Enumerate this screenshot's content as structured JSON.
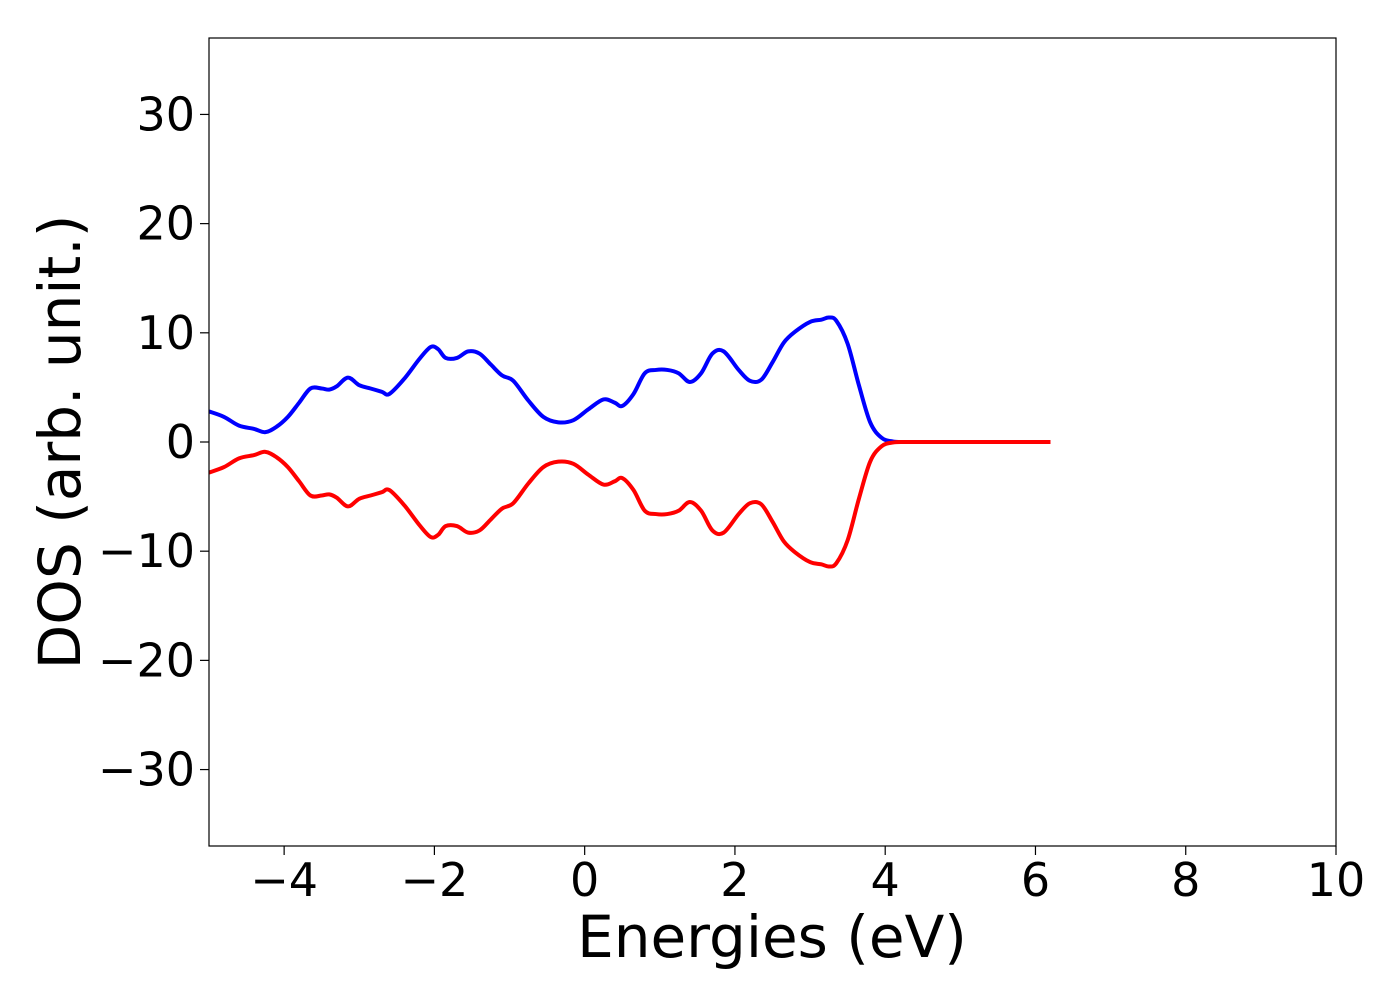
{
  "chart_data": {
    "type": "line",
    "title": "",
    "xlabel": "Energies (eV)",
    "ylabel": "DOS (arb. unit.)",
    "xlim": [
      -5,
      10
    ],
    "ylim": [
      -37,
      37
    ],
    "grid": false,
    "legend": "none",
    "xticks": [
      -4,
      -2,
      0,
      2,
      4,
      6,
      8,
      10
    ],
    "xtick_labels": [
      "−4",
      "−2",
      "0",
      "2",
      "4",
      "6",
      "8",
      "10"
    ],
    "yticks": [
      -30,
      -20,
      -10,
      0,
      10,
      20,
      30
    ],
    "ytick_labels": [
      "−30",
      "−20",
      "−10",
      "0",
      "10",
      "20",
      "30"
    ],
    "series": [
      {
        "color": "#0000ff",
        "x": [
          -5.0,
          -4.8,
          -4.6,
          -4.4,
          -4.25,
          -4.1,
          -3.95,
          -3.8,
          -3.65,
          -3.5,
          -3.4,
          -3.3,
          -3.15,
          -3.0,
          -2.85,
          -2.7,
          -2.6,
          -2.4,
          -2.2,
          -2.05,
          -1.95,
          -1.85,
          -1.7,
          -1.55,
          -1.4,
          -1.25,
          -1.1,
          -0.95,
          -0.75,
          -0.55,
          -0.35,
          -0.15,
          0.05,
          0.25,
          0.4,
          0.5,
          0.65,
          0.8,
          0.95,
          1.1,
          1.25,
          1.4,
          1.55,
          1.7,
          1.85,
          2.05,
          2.2,
          2.35,
          2.5,
          2.65,
          2.8,
          3.0,
          3.15,
          3.25,
          3.35,
          3.5,
          3.65,
          3.8,
          3.95,
          4.1,
          4.3,
          5.0,
          6.2
        ],
        "y": [
          2.8,
          2.3,
          1.5,
          1.2,
          0.9,
          1.4,
          2.3,
          3.6,
          4.9,
          4.9,
          4.8,
          5.1,
          5.9,
          5.2,
          4.9,
          4.6,
          4.4,
          5.8,
          7.6,
          8.7,
          8.5,
          7.7,
          7.7,
          8.3,
          8.1,
          7.1,
          6.1,
          5.6,
          3.8,
          2.3,
          1.8,
          2.0,
          3.0,
          3.9,
          3.6,
          3.3,
          4.4,
          6.3,
          6.6,
          6.6,
          6.3,
          5.5,
          6.3,
          8.1,
          8.3,
          6.6,
          5.6,
          5.7,
          7.3,
          9.1,
          10.1,
          11.0,
          11.2,
          11.4,
          11.1,
          9.0,
          5.2,
          1.8,
          0.4,
          0.05,
          0.0,
          0.0,
          0.0
        ]
      },
      {
        "color": "#ff0000",
        "x": [
          -5.0,
          -4.8,
          -4.6,
          -4.4,
          -4.25,
          -4.1,
          -3.95,
          -3.8,
          -3.65,
          -3.5,
          -3.4,
          -3.3,
          -3.15,
          -3.0,
          -2.85,
          -2.7,
          -2.6,
          -2.4,
          -2.2,
          -2.05,
          -1.95,
          -1.85,
          -1.7,
          -1.55,
          -1.4,
          -1.25,
          -1.1,
          -0.95,
          -0.75,
          -0.55,
          -0.35,
          -0.15,
          0.05,
          0.25,
          0.4,
          0.5,
          0.65,
          0.8,
          0.95,
          1.1,
          1.25,
          1.4,
          1.55,
          1.7,
          1.85,
          2.05,
          2.2,
          2.35,
          2.5,
          2.65,
          2.8,
          3.0,
          3.15,
          3.25,
          3.35,
          3.5,
          3.65,
          3.8,
          3.95,
          4.1,
          4.3,
          5.0,
          6.2
        ],
        "y": [
          -2.8,
          -2.3,
          -1.5,
          -1.2,
          -0.9,
          -1.4,
          -2.3,
          -3.6,
          -4.9,
          -4.9,
          -4.8,
          -5.1,
          -5.9,
          -5.2,
          -4.9,
          -4.6,
          -4.4,
          -5.8,
          -7.6,
          -8.7,
          -8.5,
          -7.7,
          -7.7,
          -8.3,
          -8.1,
          -7.1,
          -6.1,
          -5.6,
          -3.8,
          -2.3,
          -1.8,
          -2.0,
          -3.0,
          -3.9,
          -3.6,
          -3.3,
          -4.4,
          -6.3,
          -6.6,
          -6.6,
          -6.3,
          -5.5,
          -6.3,
          -8.1,
          -8.3,
          -6.6,
          -5.6,
          -5.7,
          -7.3,
          -9.1,
          -10.1,
          -11.0,
          -11.2,
          -11.4,
          -11.1,
          -9.0,
          -5.2,
          -1.8,
          -0.4,
          -0.05,
          0.0,
          0.0,
          0.0
        ]
      }
    ]
  }
}
